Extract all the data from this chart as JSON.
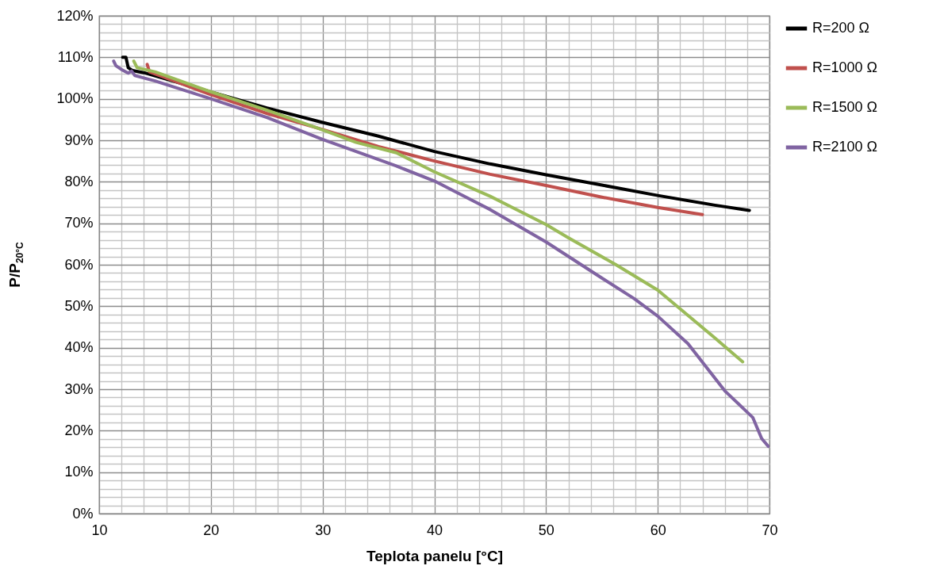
{
  "chart_data": {
    "type": "line",
    "xlabel": "Teplota panelu [°C]",
    "ylabel": "P/P$_{20°C}$",
    "xlim": [
      10,
      70
    ],
    "xticks": [
      10,
      {
        "value": 12,
        "label": null
      },
      {
        "value": 14,
        "label": null
      },
      {
        "value": 16,
        "label": null
      },
      {
        "value": 18,
        "label": null
      },
      20,
      {
        "value": 22,
        "label": null
      },
      {
        "value": 24,
        "label": null
      },
      {
        "value": 26,
        "label": null
      },
      {
        "value": 28,
        "label": null
      },
      30,
      {
        "value": 32,
        "label": null
      },
      {
        "value": 34,
        "label": null
      },
      {
        "value": 36,
        "label": null
      },
      {
        "value": 38,
        "label": null
      },
      40,
      {
        "value": 42,
        "label": null
      },
      {
        "value": 44,
        "label": null
      },
      {
        "value": 46,
        "label": null
      },
      {
        "value": 48,
        "label": null
      },
      50,
      {
        "value": 52,
        "label": null
      },
      {
        "value": 54,
        "label": null
      },
      {
        "value": 56,
        "label": null
      },
      {
        "value": 58,
        "label": null
      },
      60,
      {
        "value": 62,
        "label": null
      },
      {
        "value": 64,
        "label": null
      },
      {
        "value": 66,
        "label": null
      },
      {
        "value": 68,
        "label": null
      },
      70
    ],
    "ylim": [
      0,
      120
    ],
    "yticks": [
      {
        "value": 0,
        "label": "0%"
      },
      {
        "value": 2,
        "label": null
      },
      {
        "value": 4,
        "label": null
      },
      {
        "value": 6,
        "label": null
      },
      {
        "value": 8,
        "label": null
      },
      {
        "value": 10,
        "label": "10%"
      },
      {
        "value": 12,
        "label": null
      },
      {
        "value": 14,
        "label": null
      },
      {
        "value": 16,
        "label": null
      },
      {
        "value": 18,
        "label": null
      },
      {
        "value": 20,
        "label": "20%"
      },
      {
        "value": 22,
        "label": null
      },
      {
        "value": 24,
        "label": null
      },
      {
        "value": 26,
        "label": null
      },
      {
        "value": 28,
        "label": null
      },
      {
        "value": 30,
        "label": "30%"
      },
      {
        "value": 32,
        "label": null
      },
      {
        "value": 34,
        "label": null
      },
      {
        "value": 36,
        "label": null
      },
      {
        "value": 38,
        "label": null
      },
      {
        "value": 40,
        "label": "40%"
      },
      {
        "value": 42,
        "label": null
      },
      {
        "value": 44,
        "label": null
      },
      {
        "value": 46,
        "label": null
      },
      {
        "value": 48,
        "label": null
      },
      {
        "value": 50,
        "label": "50%"
      },
      {
        "value": 52,
        "label": null
      },
      {
        "value": 54,
        "label": null
      },
      {
        "value": 56,
        "label": null
      },
      {
        "value": 58,
        "label": null
      },
      {
        "value": 60,
        "label": "60%"
      },
      {
        "value": 62,
        "label": null
      },
      {
        "value": 64,
        "label": null
      },
      {
        "value": 66,
        "label": null
      },
      {
        "value": 68,
        "label": null
      },
      {
        "value": 70,
        "label": "70%"
      },
      {
        "value": 72,
        "label": null
      },
      {
        "value": 74,
        "label": null
      },
      {
        "value": 76,
        "label": null
      },
      {
        "value": 78,
        "label": null
      },
      {
        "value": 80,
        "label": "80%"
      },
      {
        "value": 82,
        "label": null
      },
      {
        "value": 84,
        "label": null
      },
      {
        "value": 86,
        "label": null
      },
      {
        "value": 88,
        "label": null
      },
      {
        "value": 90,
        "label": "90%"
      },
      {
        "value": 92,
        "label": null
      },
      {
        "value": 94,
        "label": null
      },
      {
        "value": 96,
        "label": null
      },
      {
        "value": 98,
        "label": null
      },
      {
        "value": 100,
        "label": "100%"
      },
      {
        "value": 102,
        "label": null
      },
      {
        "value": 104,
        "label": null
      },
      {
        "value": 106,
        "label": null
      },
      {
        "value": 108,
        "label": null
      },
      {
        "value": 110,
        "label": "110%"
      },
      {
        "value": 112,
        "label": null
      },
      {
        "value": 114,
        "label": null
      },
      {
        "value": 116,
        "label": null
      },
      {
        "value": 118,
        "label": null
      },
      {
        "value": 120,
        "label": "120%"
      }
    ],
    "grid": true,
    "legend": "right",
    "line_style": "solid",
    "series": [
      {
        "name": "R=200 Ω",
        "color": "#000000",
        "x": [
          12.1,
          12.4,
          12.6,
          13,
          14,
          25,
          30,
          35,
          40,
          45,
          50,
          55,
          60,
          65,
          68.2
        ],
        "values": [
          110,
          110,
          107.5,
          106.8,
          106.3,
          97.8,
          94.3,
          91,
          87.3,
          84.3,
          81.7,
          79.2,
          76.7,
          74.4,
          73.1
        ]
      },
      {
        "name": "R=1000 Ω",
        "color": "#c0504d",
        "x": [
          14.3,
          14.5,
          16,
          20,
          25,
          30,
          35,
          40,
          45,
          50,
          55,
          60,
          64
        ],
        "values": [
          108.3,
          106.5,
          105,
          101,
          96.5,
          92.6,
          88.5,
          85,
          81.8,
          79.1,
          76.3,
          73.8,
          72.1
        ]
      },
      {
        "name": "R=1500 Ω",
        "color": "#9bbb59",
        "x": [
          13.1,
          13.4,
          15,
          20,
          25,
          30,
          33,
          36.6,
          40,
          45,
          50,
          52,
          56.2,
          60,
          65,
          67.6
        ],
        "values": [
          109.1,
          107.5,
          106.5,
          101.7,
          97.3,
          92.5,
          89.5,
          87,
          82.4,
          76.5,
          69.7,
          66.5,
          60.1,
          53.9,
          42.6,
          36.6
        ]
      },
      {
        "name": "R=2100 Ω",
        "color": "#8064a2",
        "x": [
          11.3,
          11.5,
          12.1,
          12.6,
          12.9,
          13.2,
          15,
          20,
          25,
          30,
          36.6,
          40,
          45,
          50,
          55.1,
          57.9,
          60,
          62.7,
          66,
          68.5,
          69.3,
          69.9
        ],
        "values": [
          109.1,
          108,
          106.9,
          106.2,
          106.7,
          105.6,
          104.3,
          100,
          95.5,
          90.2,
          83.8,
          80.2,
          73.3,
          65.5,
          56.6,
          51.8,
          47.6,
          41,
          29.6,
          23.2,
          18.1,
          16.2
        ]
      }
    ]
  }
}
